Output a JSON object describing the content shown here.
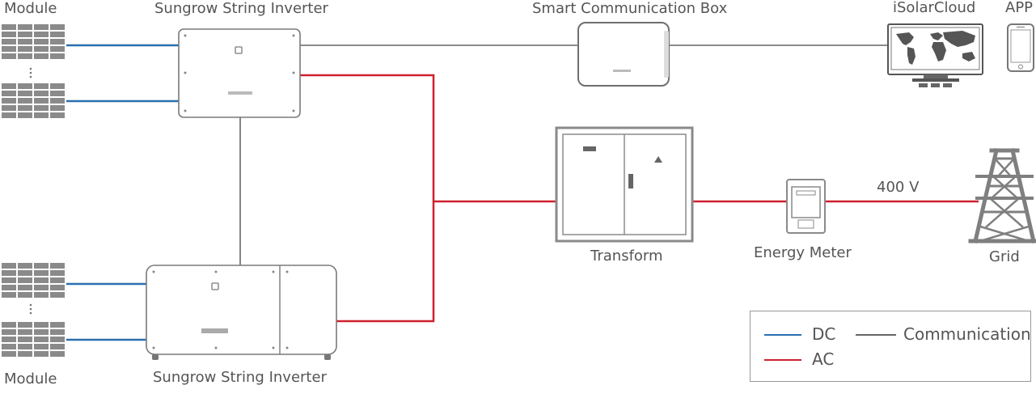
{
  "labels": {
    "module_top": "Module",
    "module_bottom": "Module",
    "inverter_top": "Sungrow String Inverter",
    "inverter_bottom": "Sungrow String Inverter",
    "comm_box": "Smart Communication Box",
    "cloud": "iSolarCloud",
    "app": "APP",
    "transformer": "Transform",
    "meter": "Energy Meter",
    "grid": "Grid",
    "voltage": "400 V"
  },
  "legend": {
    "dc": "DC",
    "ac": "AC",
    "communication": "Communication"
  },
  "colors": {
    "dc": "#2a6fb0",
    "ac": "#d0202e",
    "communication": "#666666",
    "equipment": "#8a8a8a"
  }
}
